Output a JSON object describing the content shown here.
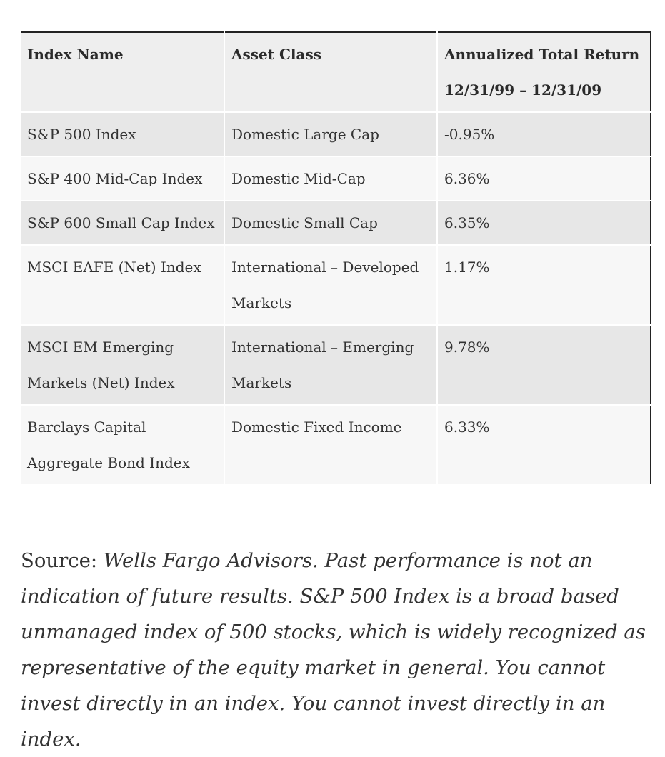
{
  "table": {
    "headers": [
      "Index Name",
      "Asset Class",
      "Annualized Total Return 12/31/99 – 12/31/09"
    ],
    "rows": [
      [
        "S&P 500 Index",
        "Domestic Large Cap",
        "-0.95%"
      ],
      [
        "S&P 400 Mid-Cap Index",
        "Domestic Mid-Cap",
        "6.36%"
      ],
      [
        "S&P 600 Small Cap Index",
        "Domestic Small Cap",
        "6.35%"
      ],
      [
        "MSCI EAFE (Net) Index",
        "International – Developed Markets",
        "1.17%"
      ],
      [
        "MSCI EM Emerging Markets (Net) Index",
        "International – Emerging Markets",
        "9.78%"
      ],
      [
        "Barclays Capital Aggregate Bond Index",
        "Domestic Fixed Income",
        "6.33%"
      ]
    ]
  },
  "footnote": {
    "prefix": "Source: ",
    "text": "Wells Fargo Advisors.  Past performance is not an indication of future results. S&P 500 Index is a broad based unmanaged index of 500 stocks, which is widely recognized as representative of the equity market in general. You cannot invest directly in an index. You cannot invest directly in an index."
  }
}
